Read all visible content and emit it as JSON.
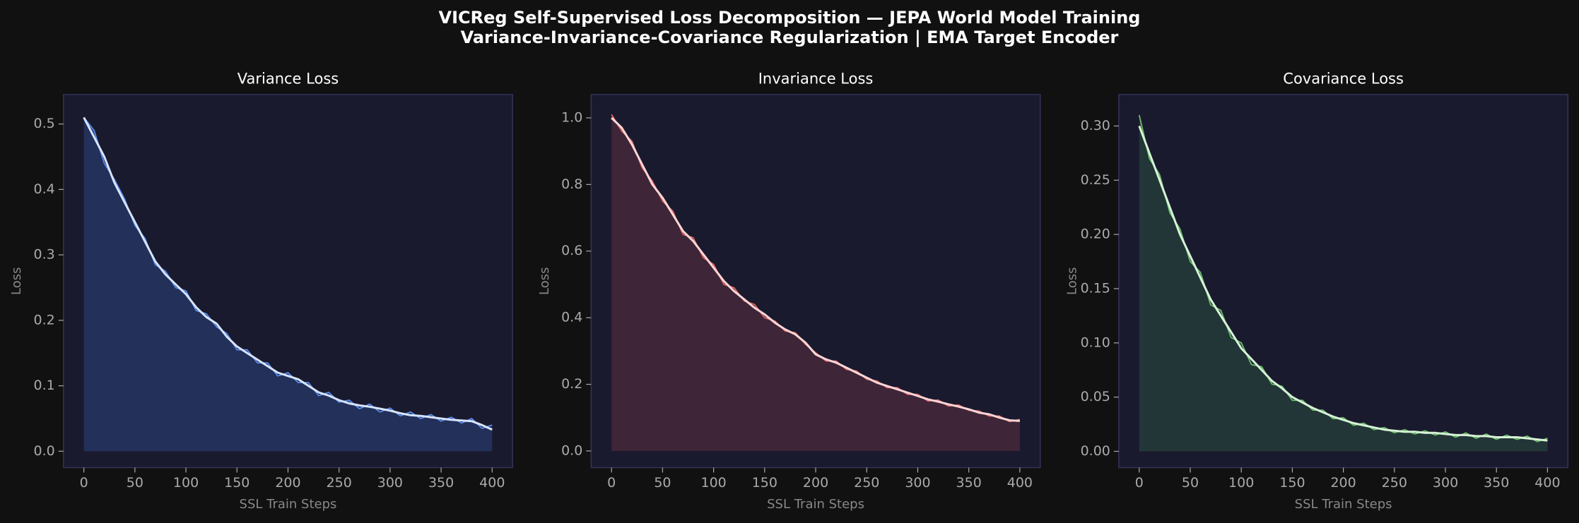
{
  "title": "VICReg Self-Supervised Loss Decomposition — JEPA World Model Training",
  "subtitle": "Variance-Invariance-Covariance Regularization | EMA Target Encoder",
  "chart_data": [
    {
      "type": "line",
      "title": "Variance Loss",
      "x_label": "SSL Train Steps",
      "y_label": "Loss",
      "x": [
        0,
        10,
        20,
        30,
        40,
        50,
        60,
        70,
        80,
        90,
        100,
        110,
        120,
        130,
        140,
        150,
        160,
        170,
        180,
        190,
        200,
        210,
        220,
        230,
        240,
        250,
        260,
        270,
        280,
        290,
        300,
        310,
        320,
        330,
        340,
        350,
        360,
        370,
        380,
        390,
        400
      ],
      "series": [
        {
          "color": "#5b8def",
          "fill": "#25335e",
          "values": [
            0.51,
            0.49,
            0.44,
            0.415,
            0.385,
            0.345,
            0.325,
            0.285,
            0.275,
            0.25,
            0.245,
            0.215,
            0.21,
            0.19,
            0.18,
            0.155,
            0.155,
            0.135,
            0.135,
            0.115,
            0.12,
            0.105,
            0.105,
            0.085,
            0.09,
            0.075,
            0.078,
            0.065,
            0.072,
            0.06,
            0.066,
            0.054,
            0.06,
            0.05,
            0.056,
            0.046,
            0.052,
            0.043,
            0.05,
            0.035,
            0.04
          ]
        },
        {
          "color": "#d6e4ff",
          "values": [
            0.51,
            0.48,
            0.45,
            0.41,
            0.38,
            0.35,
            0.32,
            0.29,
            0.27,
            0.255,
            0.24,
            0.22,
            0.205,
            0.195,
            0.175,
            0.16,
            0.15,
            0.14,
            0.13,
            0.12,
            0.115,
            0.11,
            0.1,
            0.09,
            0.085,
            0.078,
            0.073,
            0.07,
            0.068,
            0.065,
            0.062,
            0.058,
            0.055,
            0.054,
            0.052,
            0.05,
            0.048,
            0.047,
            0.046,
            0.04,
            0.033
          ]
        }
      ],
      "xlim": [
        -20,
        420
      ],
      "xticks": [
        0,
        50,
        100,
        150,
        200,
        250,
        300,
        350,
        400
      ],
      "ylim": [
        -0.025,
        0.545
      ],
      "yticks": [
        {
          "value": 0,
          "label": "0.0"
        },
        0.1,
        0.2,
        0.3,
        0.4,
        0.5
      ]
    },
    {
      "type": "line",
      "title": "Invariance Loss",
      "x_label": "SSL Train Steps",
      "y_label": "Loss",
      "x": [
        0,
        10,
        20,
        30,
        40,
        50,
        60,
        70,
        80,
        90,
        100,
        110,
        120,
        130,
        140,
        150,
        160,
        170,
        180,
        190,
        200,
        210,
        220,
        230,
        240,
        250,
        260,
        270,
        280,
        290,
        300,
        310,
        320,
        330,
        340,
        350,
        360,
        370,
        380,
        390,
        400
      ],
      "series": [
        {
          "color": "#e06666",
          "fill": "#43283a",
          "values": [
            1.01,
            0.96,
            0.93,
            0.85,
            0.81,
            0.75,
            0.72,
            0.65,
            0.64,
            0.58,
            0.56,
            0.5,
            0.49,
            0.45,
            0.44,
            0.4,
            0.39,
            0.36,
            0.355,
            0.32,
            0.295,
            0.27,
            0.27,
            0.245,
            0.24,
            0.215,
            0.21,
            0.19,
            0.19,
            0.17,
            0.17,
            0.15,
            0.153,
            0.135,
            0.138,
            0.122,
            0.12,
            0.105,
            0.105,
            0.088,
            0.095
          ]
        },
        {
          "color": "#ffd6d6",
          "values": [
            1.0,
            0.97,
            0.92,
            0.86,
            0.8,
            0.76,
            0.71,
            0.66,
            0.63,
            0.59,
            0.55,
            0.51,
            0.48,
            0.455,
            0.43,
            0.41,
            0.385,
            0.365,
            0.35,
            0.325,
            0.29,
            0.275,
            0.265,
            0.25,
            0.235,
            0.22,
            0.205,
            0.195,
            0.185,
            0.175,
            0.165,
            0.155,
            0.148,
            0.14,
            0.133,
            0.125,
            0.115,
            0.11,
            0.1,
            0.092,
            0.09
          ]
        }
      ],
      "xlim": [
        -20,
        420
      ],
      "xticks": [
        0,
        50,
        100,
        150,
        200,
        250,
        300,
        350,
        400
      ],
      "ylim": [
        -0.05,
        1.07
      ],
      "yticks": [
        {
          "value": 0,
          "label": "0.0"
        },
        0.2,
        0.4,
        0.6,
        0.8,
        {
          "value": 1,
          "label": "1.0"
        }
      ]
    },
    {
      "type": "line",
      "title": "Covariance Loss",
      "x_label": "SSL Train Steps",
      "y_label": "Loss",
      "x": [
        0,
        10,
        20,
        30,
        40,
        50,
        60,
        70,
        80,
        90,
        100,
        110,
        120,
        130,
        140,
        150,
        160,
        170,
        180,
        190,
        200,
        210,
        220,
        230,
        240,
        250,
        260,
        270,
        280,
        290,
        300,
        310,
        320,
        330,
        340,
        350,
        360,
        370,
        380,
        390,
        400
      ],
      "series": [
        {
          "color": "#6abf69",
          "fill": "#243a38",
          "values": [
            0.31,
            0.27,
            0.255,
            0.22,
            0.205,
            0.175,
            0.165,
            0.135,
            0.13,
            0.105,
            0.1,
            0.08,
            0.078,
            0.062,
            0.06,
            0.047,
            0.047,
            0.038,
            0.038,
            0.03,
            0.031,
            0.024,
            0.026,
            0.02,
            0.022,
            0.017,
            0.02,
            0.016,
            0.019,
            0.015,
            0.018,
            0.013,
            0.017,
            0.012,
            0.016,
            0.011,
            0.015,
            0.011,
            0.014,
            0.009,
            0.012
          ]
        },
        {
          "color": "#d6f2d6",
          "values": [
            0.3,
            0.275,
            0.25,
            0.225,
            0.2,
            0.18,
            0.16,
            0.14,
            0.125,
            0.11,
            0.095,
            0.085,
            0.075,
            0.065,
            0.058,
            0.05,
            0.045,
            0.04,
            0.036,
            0.032,
            0.029,
            0.026,
            0.024,
            0.022,
            0.02,
            0.019,
            0.018,
            0.018,
            0.017,
            0.017,
            0.016,
            0.015,
            0.015,
            0.014,
            0.014,
            0.013,
            0.013,
            0.013,
            0.012,
            0.011,
            0.01
          ]
        }
      ],
      "xlim": [
        -20,
        420
      ],
      "xticks": [
        0,
        50,
        100,
        150,
        200,
        250,
        300,
        350,
        400
      ],
      "ylim": [
        -0.015,
        0.329
      ],
      "yticks": [
        {
          "value": 0,
          "label": "0.00"
        },
        0.05,
        {
          "value": 0.1,
          "label": "0.10"
        },
        0.15,
        {
          "value": 0.2,
          "label": "0.20"
        },
        0.25,
        {
          "value": 0.3,
          "label": "0.30"
        }
      ]
    }
  ]
}
